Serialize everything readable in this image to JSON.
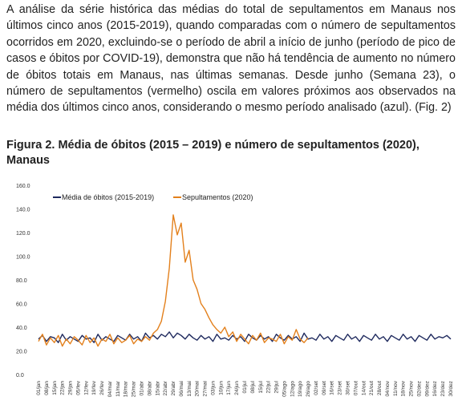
{
  "paragraph": "A análise da série histórica das médias do total de sepultamentos em Manaus nos últimos cinco anos (2015-2019), quando comparadas com o número de sepultamentos ocorridos em 2020, excluindo-se o período de abril a início de junho (período de pico de casos e óbitos por COVID-19), demonstra que não há tendência de aumento no número de óbitos totais em Manaus, nas últimas semanas. Desde junho (Semana 23), o número de sepultamentos (vermelho) oscila em valores próximos aos observados na média dos últimos cinco anos, considerando o mesmo período analisado (azul). (Fig. 2)",
  "figure_caption": "Figura 2. Média de óbitos (2015 – 2019) e número de sepultamentos (2020), Manaus",
  "chart_data": {
    "type": "line",
    "categories": [
      "01/jan",
      null,
      "08/jan",
      null,
      "15/jan",
      null,
      "22/jan",
      null,
      "29/jan",
      null,
      "05/fev",
      null,
      "12/fev",
      null,
      "19/fev",
      null,
      "26/fev",
      null,
      "04/mar",
      null,
      "11/mar",
      null,
      "18/mar",
      null,
      "25/mar",
      null,
      "01/abr",
      null,
      "08/abr",
      null,
      "15/abr",
      null,
      "22/abr",
      null,
      "29/abr",
      null,
      "06/mai",
      null,
      "13/mai",
      null,
      "20/mai",
      null,
      "27/mai",
      null,
      "03/jun",
      null,
      "10/jun",
      null,
      "17/jun",
      null,
      "24/jun",
      null,
      "01/jul",
      null,
      "08/jul",
      null,
      "15/jul",
      null,
      "22/jul",
      null,
      "29/jul",
      null,
      "05/ago",
      null,
      "12/ago",
      null,
      "19/ago",
      null,
      "26/ago",
      null,
      "02/set",
      null,
      "09/set",
      null,
      "16/set",
      null,
      "23/set",
      null,
      "30/set",
      null,
      "07/out",
      null,
      "14/out",
      null,
      "21/out",
      null,
      "28/out",
      null,
      "04/nov",
      null,
      "11/nov",
      null,
      "18/nov",
      null,
      "25/nov",
      null,
      "02/dez",
      null,
      "09/dez",
      null,
      "16/dez",
      null,
      "23/dez",
      null,
      "30/dez"
    ],
    "series": [
      {
        "name": "Média de óbitos (2015-2019)",
        "color": "#1f2a5e",
        "values": [
          30,
          33,
          28,
          32,
          31,
          27,
          34,
          29,
          32,
          30,
          28,
          33,
          30,
          31,
          27,
          34,
          29,
          32,
          30,
          28,
          33,
          31,
          29,
          34,
          30,
          32,
          28,
          35,
          31,
          33,
          30,
          34,
          32,
          36,
          31,
          35,
          33,
          30,
          34,
          31,
          29,
          33,
          30,
          32,
          28,
          34,
          30,
          31,
          29,
          33,
          30,
          32,
          28,
          34,
          31,
          29,
          33,
          30,
          32,
          28,
          34,
          31,
          29,
          33,
          30,
          32,
          28,
          35,
          30,
          31,
          29,
          34,
          30,
          32,
          28,
          33,
          31,
          29,
          34,
          30,
          32,
          28,
          33,
          31,
          29,
          34,
          30,
          32,
          28,
          33,
          31,
          29,
          34,
          30,
          32,
          28,
          33,
          31,
          29,
          34,
          30,
          32,
          31,
          33,
          30
        ]
      },
      {
        "name": "Sepultamentos (2020)",
        "color": "#e3801c",
        "values": [
          28,
          34,
          25,
          31,
          27,
          33,
          24,
          30,
          26,
          32,
          29,
          25,
          33,
          27,
          31,
          24,
          30,
          28,
          34,
          26,
          31,
          27,
          29,
          33,
          26,
          30,
          28,
          32,
          29,
          35,
          38,
          45,
          62,
          90,
          135,
          118,
          128,
          95,
          105,
          80,
          72,
          60,
          55,
          48,
          42,
          38,
          35,
          40,
          32,
          36,
          28,
          34,
          30,
          26,
          33,
          29,
          35,
          27,
          31,
          30,
          28,
          34,
          26,
          32,
          29,
          38,
          30,
          27,
          31,
          null,
          null,
          null,
          null,
          null,
          null,
          null,
          null,
          null,
          null,
          null,
          null,
          null,
          null,
          null,
          null,
          null,
          null,
          null,
          null,
          null,
          null,
          null,
          null,
          null,
          null,
          null,
          null,
          null,
          null,
          null,
          null,
          null,
          null,
          null,
          null
        ]
      }
    ],
    "ylim": [
      0,
      160
    ],
    "yticks": [
      {
        "value": 0,
        "label": "0.0"
      },
      {
        "value": 20,
        "label": "20.0"
      },
      {
        "value": 40,
        "label": "40.0"
      },
      {
        "value": 60,
        "label": "60.0"
      },
      {
        "value": 80,
        "label": "80.0"
      },
      {
        "value": 100,
        "label": "100.0"
      },
      {
        "value": 120,
        "label": "120.0"
      },
      {
        "value": 140,
        "label": "140.0"
      },
      {
        "value": 160,
        "label": "160.0"
      }
    ],
    "grid": false,
    "legend": "top-left"
  }
}
